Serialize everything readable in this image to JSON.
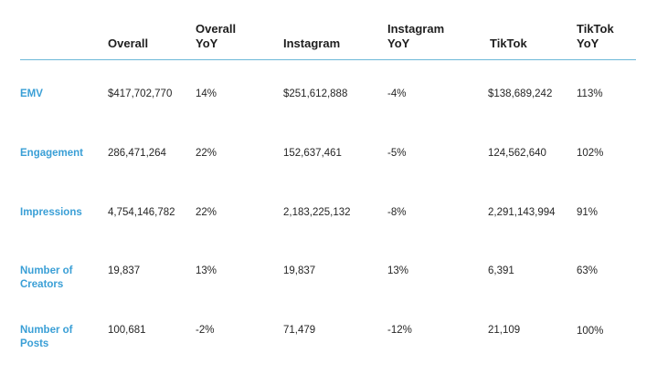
{
  "table": {
    "label_color": "#3a9fd6",
    "rule_color": "#6cb8d8",
    "headers": [
      "Overall",
      "Overall\nYoY",
      "Instagram",
      "Instagram\nYoY",
      "TikTok",
      "TikTok\nYoY"
    ],
    "rows": [
      {
        "label": "EMV",
        "values": [
          "$417,702,770",
          "14%",
          "$251,612,888",
          "-4%",
          "$138,689,242",
          "113%"
        ]
      },
      {
        "label": "Engagement",
        "values": [
          "286,471,264",
          "22%",
          "152,637,461",
          "-5%",
          "124,562,640",
          "102%"
        ]
      },
      {
        "label": "Impressions",
        "values": [
          "4,754,146,782",
          "22%",
          "2,183,225,132",
          "-8%",
          "2,291,143,994",
          "91%"
        ]
      },
      {
        "label": "Number of\nCreators",
        "values": [
          "19,837",
          "13%",
          "19,837",
          "13%",
          "6,391",
          "63%"
        ]
      },
      {
        "label": "Number of\nPosts",
        "values": [
          "100,681",
          "-2%",
          "71,479",
          "-12%",
          "21,109",
          "100%"
        ]
      }
    ]
  }
}
